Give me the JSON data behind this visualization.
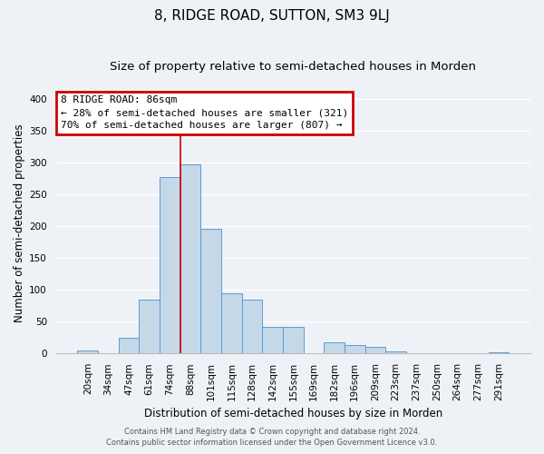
{
  "title": "8, RIDGE ROAD, SUTTON, SM3 9LJ",
  "subtitle": "Size of property relative to semi-detached houses in Morden",
  "xlabel": "Distribution of semi-detached houses by size in Morden",
  "ylabel": "Number of semi-detached properties",
  "bar_labels": [
    "20sqm",
    "34sqm",
    "47sqm",
    "61sqm",
    "74sqm",
    "88sqm",
    "101sqm",
    "115sqm",
    "128sqm",
    "142sqm",
    "155sqm",
    "169sqm",
    "182sqm",
    "196sqm",
    "209sqm",
    "223sqm",
    "237sqm",
    "250sqm",
    "264sqm",
    "277sqm",
    "291sqm"
  ],
  "bar_values": [
    5,
    0,
    25,
    85,
    278,
    298,
    197,
    95,
    85,
    42,
    42,
    0,
    18,
    14,
    10,
    4,
    0,
    0,
    0,
    0,
    2
  ],
  "bar_color": "#c5d8e8",
  "bar_edge_color": "#5b9bd5",
  "vline_index": 5,
  "vline_color": "#cc0000",
  "ylim": [
    0,
    410
  ],
  "yticks": [
    0,
    50,
    100,
    150,
    200,
    250,
    300,
    350,
    400
  ],
  "annotation_title": "8 RIDGE ROAD: 86sqm",
  "annotation_line1": "← 28% of semi-detached houses are smaller (321)",
  "annotation_line2": "70% of semi-detached houses are larger (807) →",
  "annotation_box_color": "#cc0000",
  "footer_line1": "Contains HM Land Registry data © Crown copyright and database right 2024.",
  "footer_line2": "Contains public sector information licensed under the Open Government Licence v3.0.",
  "background_color": "#eef2f7",
  "grid_color": "#ffffff",
  "title_fontsize": 11,
  "subtitle_fontsize": 9.5,
  "axis_label_fontsize": 8.5,
  "tick_fontsize": 7.5,
  "annotation_fontsize": 8,
  "footer_fontsize": 6
}
